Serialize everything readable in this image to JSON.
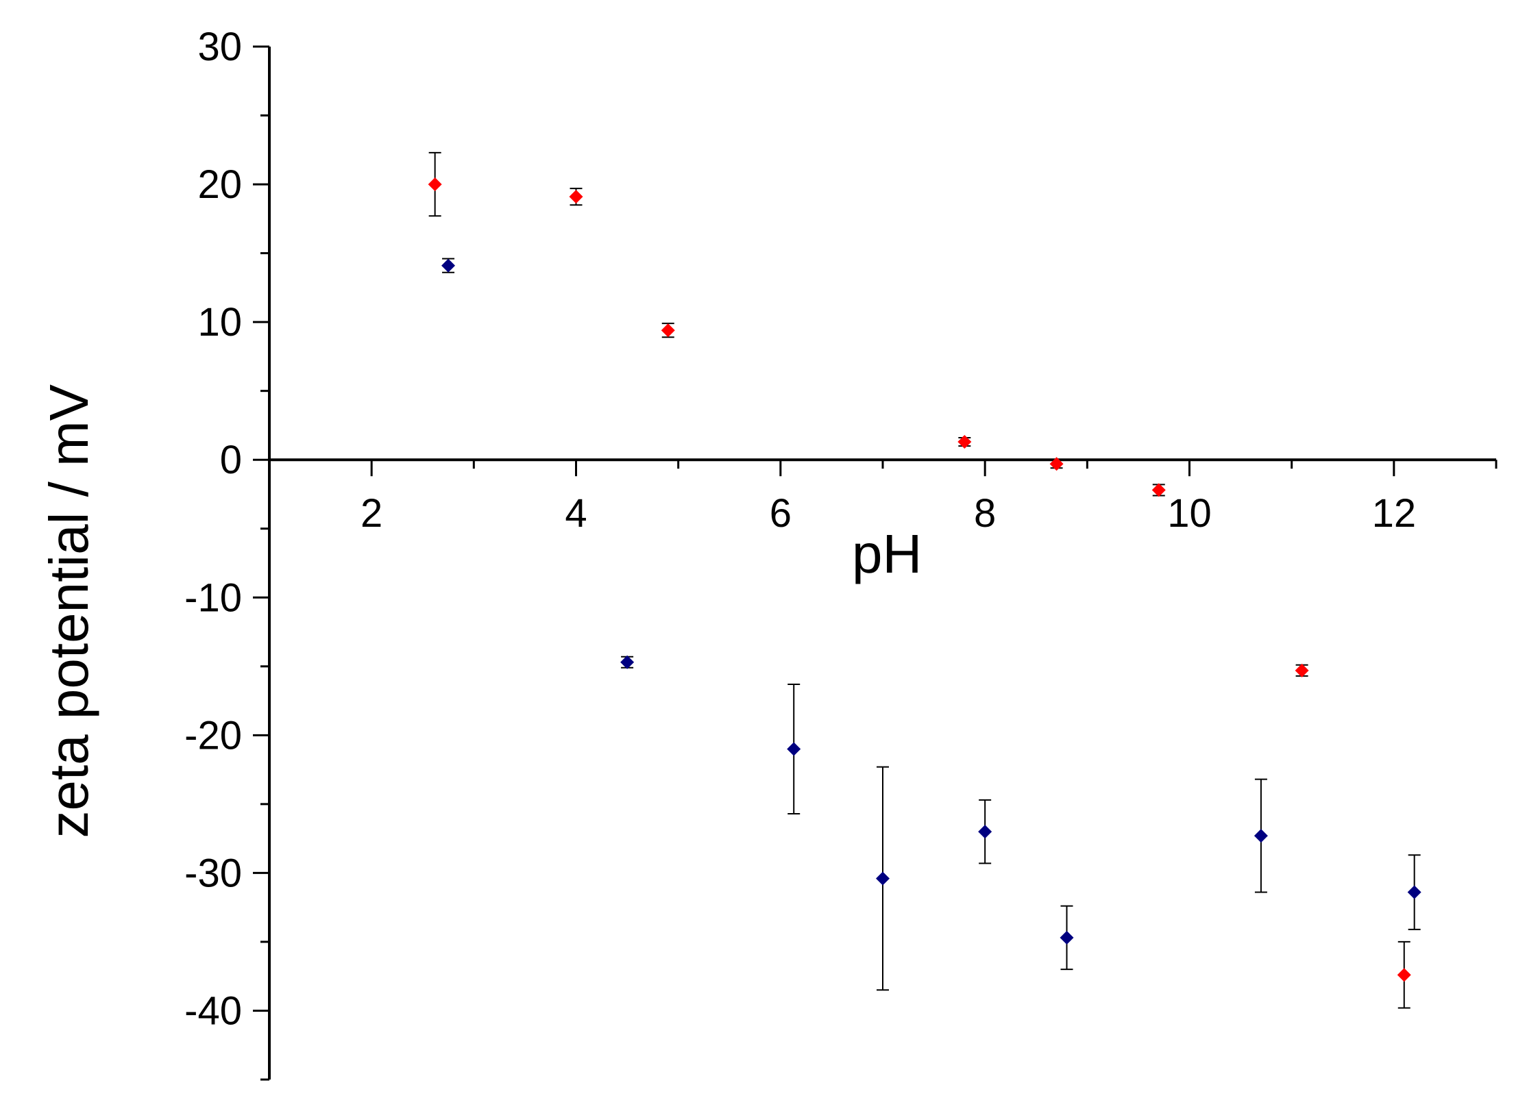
{
  "chart_data": {
    "type": "scatter",
    "title": "",
    "xlabel": "pH",
    "ylabel": "zeta potential / mV",
    "xlim": [
      1.0,
      13.0
    ],
    "ylim": [
      -45,
      30
    ],
    "x_ticks": [
      2,
      4,
      6,
      8,
      10,
      12
    ],
    "x_tick_labels": [
      "2",
      "4",
      "6",
      "8",
      "10",
      "12"
    ],
    "y_ticks": [
      -40,
      -30,
      -20,
      -10,
      0,
      10,
      20,
      30
    ],
    "y_tick_labels": [
      "-40",
      "-30",
      "-20",
      "-10",
      "0",
      "10",
      "20",
      "30"
    ],
    "x_axis_crosses_at_y": 0,
    "grid": false,
    "legend": "none",
    "marker": "diamond",
    "series": [
      {
        "color": "#ff0000",
        "points": [
          {
            "x": 2.62,
            "y": 20.0,
            "err": 2.3
          },
          {
            "x": 4.0,
            "y": 19.1,
            "err": 0.6
          },
          {
            "x": 4.9,
            "y": 9.4,
            "err": 0.5
          },
          {
            "x": 7.8,
            "y": 1.3,
            "err": 0.3
          },
          {
            "x": 8.7,
            "y": -0.3,
            "err": 0.3
          },
          {
            "x": 9.7,
            "y": -2.2,
            "err": 0.4
          },
          {
            "x": 11.1,
            "y": -15.3,
            "err": 0.4
          },
          {
            "x": 12.1,
            "y": -37.4,
            "err": 2.4
          }
        ]
      },
      {
        "color": "#000080",
        "points": [
          {
            "x": 2.75,
            "y": 14.1,
            "err": 0.5
          },
          {
            "x": 4.5,
            "y": -14.7,
            "err": 0.4
          },
          {
            "x": 6.13,
            "y": -21.0,
            "err": 4.7
          },
          {
            "x": 7.0,
            "y": -30.4,
            "err": 8.1
          },
          {
            "x": 8.0,
            "y": -27.0,
            "err": 2.3
          },
          {
            "x": 8.8,
            "y": -34.7,
            "err": 2.3
          },
          {
            "x": 10.7,
            "y": -27.3,
            "err": 4.1
          },
          {
            "x": 12.2,
            "y": -31.4,
            "err": 2.7
          }
        ]
      }
    ]
  }
}
